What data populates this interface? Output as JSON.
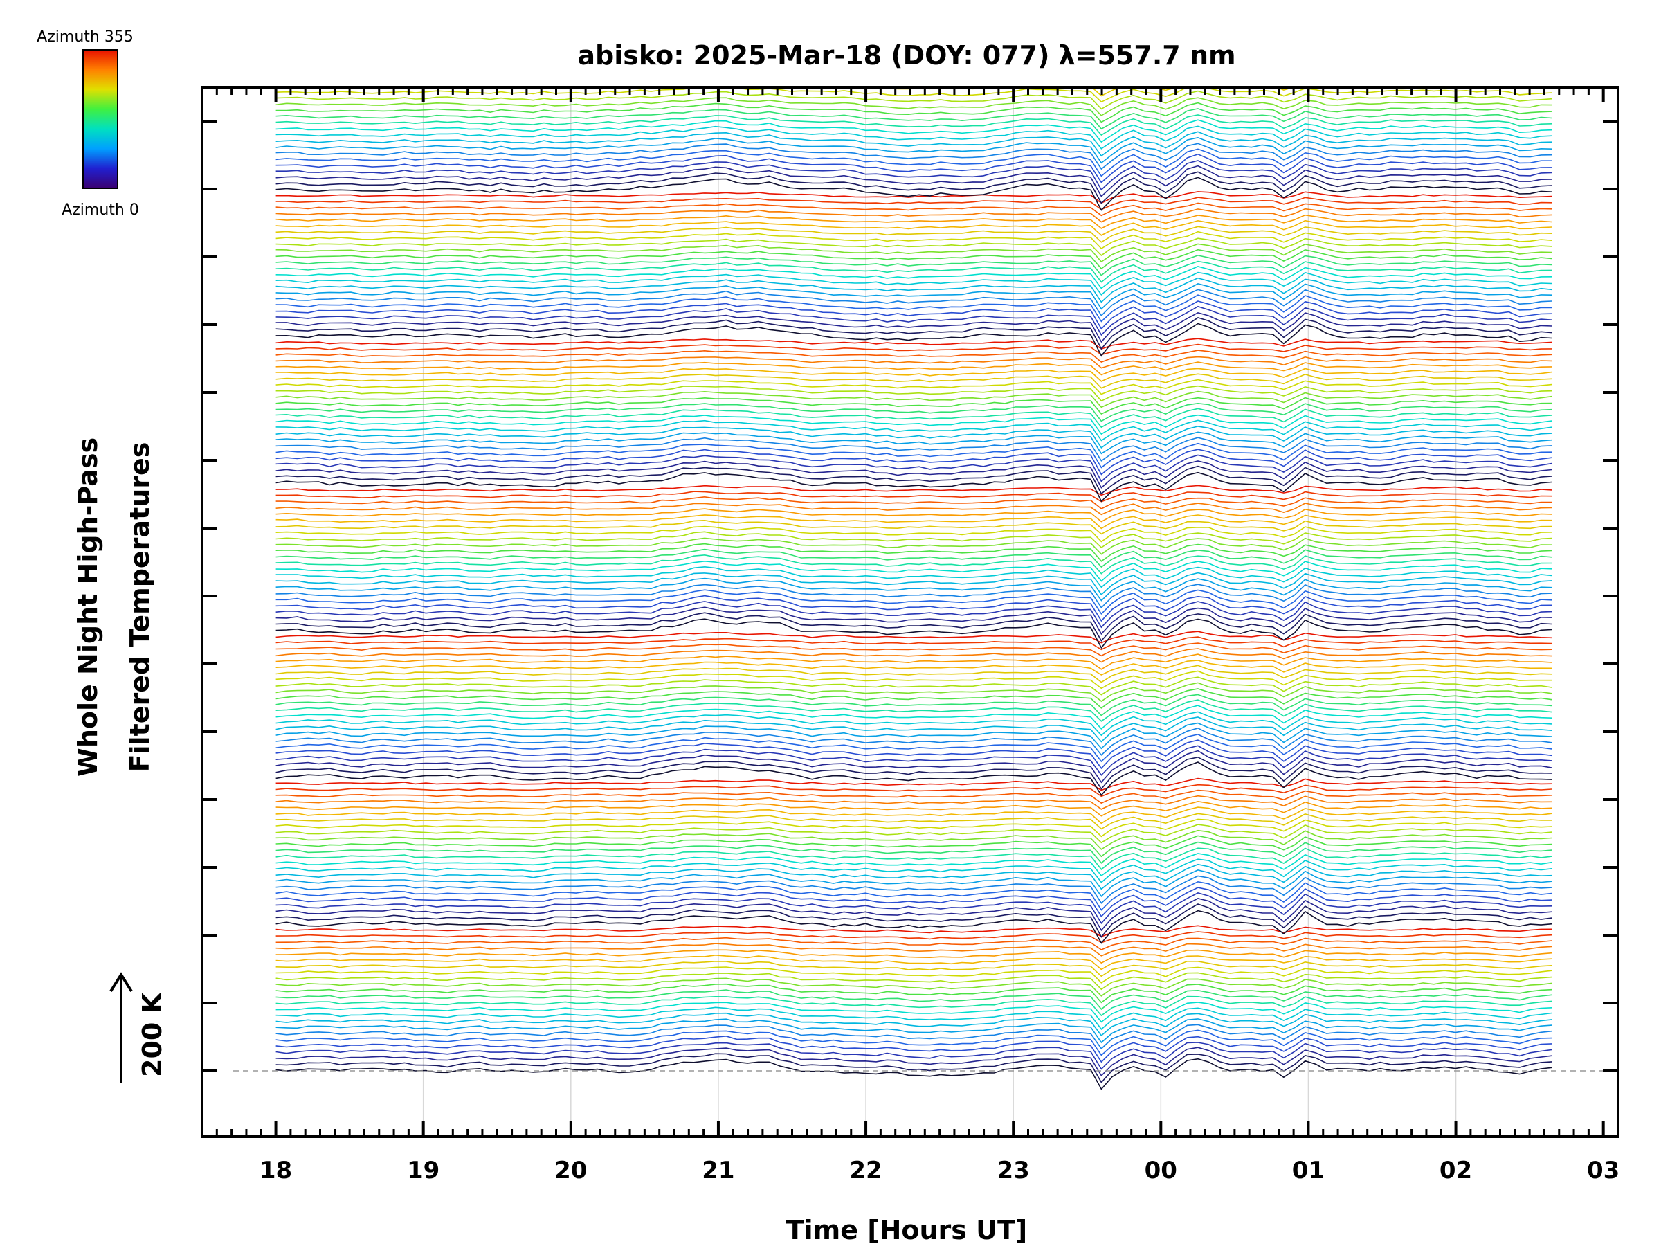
{
  "chart_data": {
    "type": "line",
    "title": "abisko: 2025-Mar-18 (DOY: 077) λ=557.7 nm",
    "xlabel": "Time [Hours UT]",
    "ylabel_line1": "Whole Night High-Pass",
    "ylabel_line2": "Filtered Temperatures",
    "scale_bar_label": "200 K",
    "colorbar": {
      "top_label": "Azimuth 355",
      "bottom_label": "Azimuth 0",
      "colors": [
        "#3b0070",
        "#2020d0",
        "#00a0ff",
        "#00e0c0",
        "#40f040",
        "#e0e000",
        "#ff8000",
        "#e81000"
      ]
    },
    "x_ticks": [
      "18",
      "19",
      "20",
      "21",
      "22",
      "23",
      "00",
      "01",
      "02",
      "03"
    ],
    "x_range_hours": [
      17.5,
      27.1
    ],
    "data_time_range_hours": [
      18.0,
      26.65
    ],
    "stack": {
      "num_groups": 7,
      "curves_per_group": 24,
      "azimuth_start": 0,
      "azimuth_end": 355,
      "offset_per_curve_K": 34,
      "amplitude_scale_K": 200
    },
    "colors": {
      "azimuth_low": "#101030",
      "azimuth_mid": "#00e0e0",
      "azimuth_high": "#ff4000"
    }
  }
}
